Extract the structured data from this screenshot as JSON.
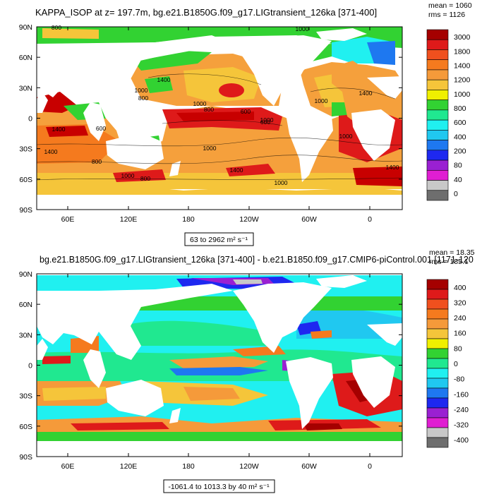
{
  "chart_data": [
    {
      "type": "heatmap",
      "title": "KAPPA_ISOP at z= 197.7m, bg.e21.B1850G.f09_g17.LIGtransient_126ka [371-400]",
      "stats": {
        "mean": "mean = 1060",
        "rms": "rms = 1126"
      },
      "range_label": "63 to 2962 m² s⁻¹",
      "x_ticks": [
        "60E",
        "120E",
        "180",
        "120W",
        "60W",
        "0"
      ],
      "y_ticks": [
        "90N",
        "60N",
        "30N",
        "0",
        "30S",
        "60S",
        "90S"
      ],
      "colorbar": {
        "labels": [
          "3000",
          "1800",
          "1400",
          "1200",
          "1000",
          "800",
          "600",
          "400",
          "200",
          "80",
          "40",
          "0"
        ],
        "colors": [
          "#a50000",
          "#de1a1a",
          "#f0501e",
          "#f57a1e",
          "#f59a3a",
          "#f5c53a",
          "#f0f000",
          "#32d232",
          "#20e890",
          "#20f0f0",
          "#20c8f0",
          "#1e78f0",
          "#1e28f0",
          "#9a20d2",
          "#e01ed2",
          "#c8c8c8",
          "#6e6e6e"
        ]
      },
      "contour_labels": [
        "800",
        "1000",
        "1400",
        "1000",
        "800",
        "1000",
        "800",
        "600",
        "1000",
        "600",
        "1000",
        "1400",
        "600",
        "1000",
        "1400",
        "1000",
        "800",
        "1400",
        "1000",
        "1400",
        "800",
        "1000",
        "1400"
      ]
    },
    {
      "type": "heatmap",
      "title": "bg.e21.B1850G.f09_g17.LIGtransient_126ka [371-400] - b.e21.B1850.f09_g17.CMIP6-piControl.001 [1171-120",
      "stats": {
        "mean": "mean = 18.35",
        "rms": "rms = 185.1"
      },
      "range_label": "-1061.4 to 1013.3 by 40 m² s⁻¹",
      "x_ticks": [
        "60E",
        "120E",
        "180",
        "120W",
        "60W",
        "0"
      ],
      "y_ticks": [
        "90N",
        "60N",
        "30N",
        "0",
        "30S",
        "60S",
        "90S"
      ],
      "colorbar": {
        "labels": [
          "400",
          "320",
          "240",
          "160",
          "80",
          "0",
          "-80",
          "-160",
          "-240",
          "-320",
          "-400"
        ],
        "colors": [
          "#a50000",
          "#de1a1a",
          "#f0501e",
          "#f57a1e",
          "#f59a3a",
          "#f5c53a",
          "#f0f000",
          "#32d232",
          "#20e890",
          "#20f0f0",
          "#20c8f0",
          "#1e78f0",
          "#1e28f0",
          "#9a20d2",
          "#e01ed2",
          "#c8c8c8",
          "#6e6e6e"
        ]
      }
    }
  ]
}
